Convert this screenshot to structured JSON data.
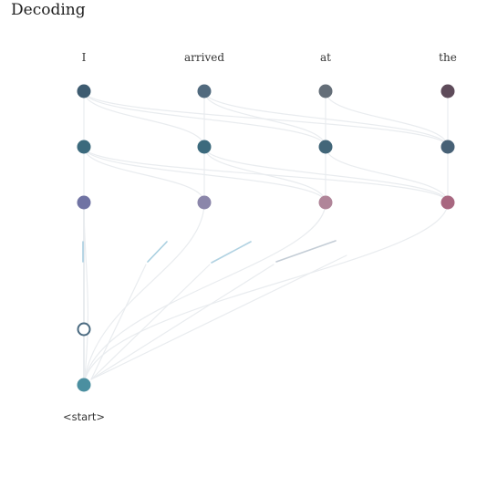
{
  "title": "Decoding",
  "tokens": [
    "I",
    "arrived",
    "at",
    "the"
  ],
  "start_label": "<start>",
  "colors": {
    "layer1": [
      "#3d5b70",
      "#516a7e",
      "#646e78",
      "#5e4b5a"
    ],
    "layer2": [
      "#3c6a7d",
      "#3c6a7d",
      "#426679",
      "#476176"
    ],
    "layer3": [
      "#7073a3",
      "#8b86aa",
      "#b08599",
      "#a86780"
    ],
    "start_node": "#4b8fa0",
    "hollow_node_stroke": "#4a6a80",
    "ghost_edge": "#e9ecef",
    "attention_edges": [
      "#a8cfe0",
      "#b1d2e2",
      "#c4cdd6"
    ]
  }
}
